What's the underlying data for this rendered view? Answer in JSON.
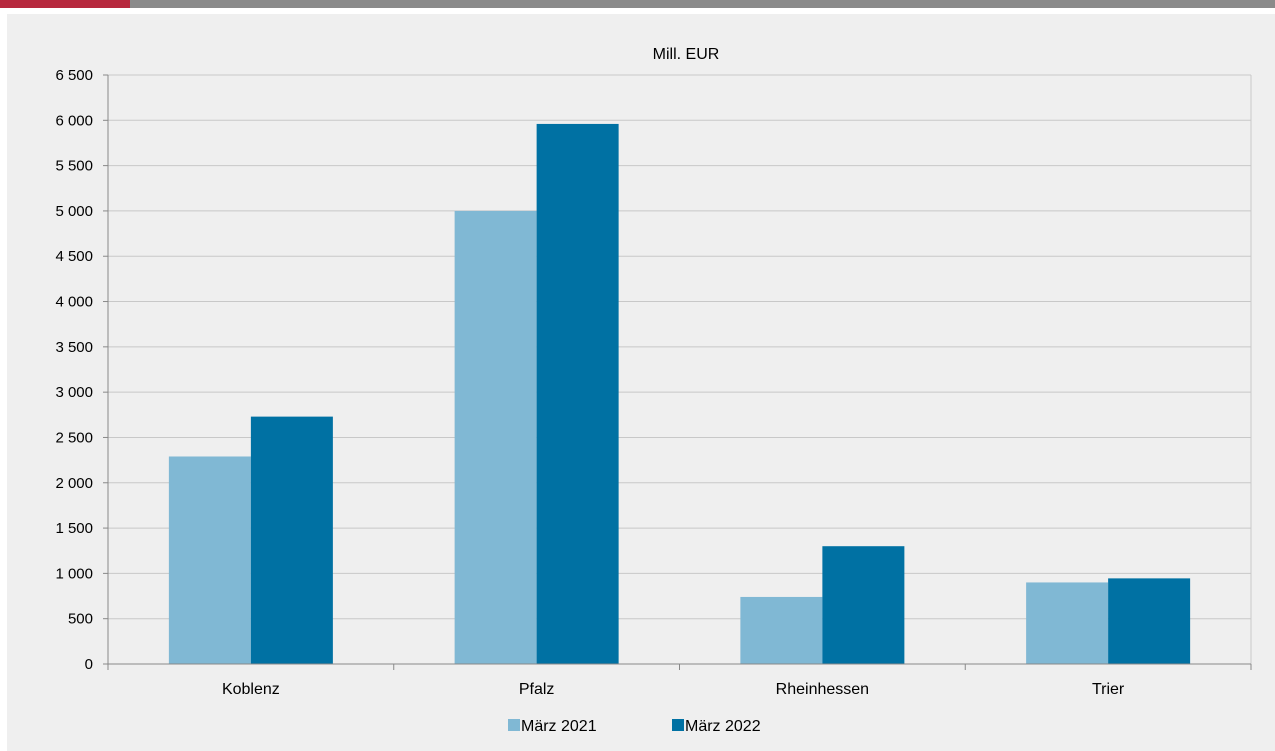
{
  "chart_data": {
    "type": "bar",
    "title": "Mill. EUR",
    "xlabel": "",
    "ylabel": "",
    "categories": [
      "Koblenz",
      "Pfalz",
      "Rheinhessen",
      "Trier"
    ],
    "series": [
      {
        "name": "März 2021",
        "values": [
          2290,
          5000,
          740,
          900
        ],
        "color": "#80b8d4"
      },
      {
        "name": "März 2022",
        "values": [
          2730,
          5960,
          1300,
          945
        ],
        "color": "#0071a3"
      }
    ],
    "ylim": [
      0,
      6500
    ],
    "yticks": [
      0,
      500,
      1000,
      1500,
      2000,
      2500,
      3000,
      3500,
      4000,
      4500,
      5000,
      5500,
      6000,
      6500
    ],
    "ytick_labels": [
      "0",
      "500",
      "1 000",
      "1 500",
      "2 000",
      "2 500",
      "3 000",
      "3 500",
      "4 000",
      "4 500",
      "5 000",
      "5 500",
      "6 000",
      "6 500"
    ],
    "grid": true,
    "legend_position": "bottom-center"
  },
  "colors": {
    "accent": "#b7283e",
    "header_bar": "#8a8a8a",
    "panel_background": "#efefef",
    "gridline": "#c8c8c8"
  }
}
